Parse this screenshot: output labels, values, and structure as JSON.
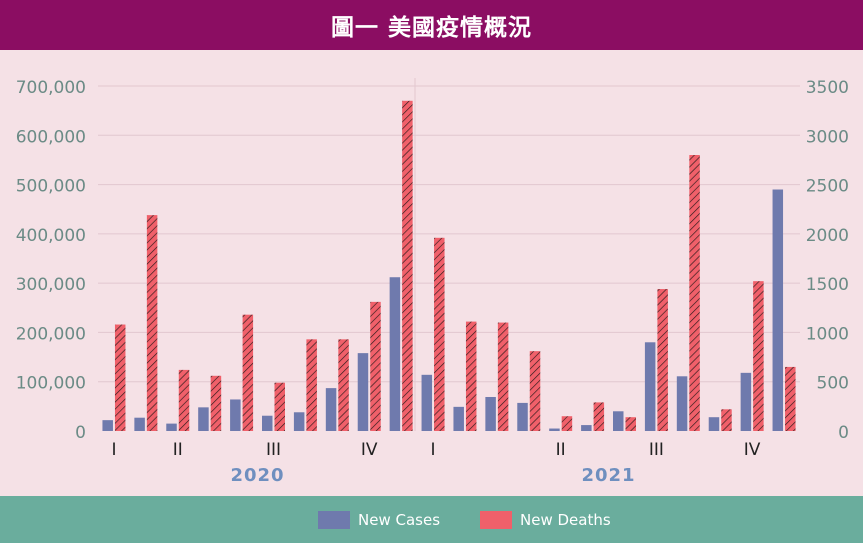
{
  "title": "圖一  美國疫情概況",
  "colors": {
    "header_bg": "#8b0d62",
    "plot_bg": "#f5e1e6",
    "legend_bg": "#6aad9d",
    "cases": "#6f7aad",
    "deaths": "#f0606a",
    "axis_text": "#6b8b86",
    "year_text": "#6f8fbf"
  },
  "legend": {
    "cases_label": "New Cases",
    "deaths_label": "New Deaths"
  },
  "chart_data": {
    "type": "bar",
    "left_axis": {
      "ticks": [
        "0",
        "100,000",
        "200,000",
        "300,000",
        "400,000",
        "500,000",
        "600,000",
        "700,000"
      ],
      "ylim": [
        0,
        700000
      ]
    },
    "right_axis": {
      "ticks": [
        "0",
        "500",
        "1000",
        "1500",
        "2000",
        "2500",
        "3000",
        "3500"
      ],
      "ylim": [
        0,
        3500
      ]
    },
    "quarter_labels": [
      {
        "label": "I",
        "index": 0
      },
      {
        "label": "II",
        "index": 2
      },
      {
        "label": "III",
        "index": 5
      },
      {
        "label": "IV",
        "index": 8
      },
      {
        "label": "I",
        "index": 10
      },
      {
        "label": "II",
        "index": 14
      },
      {
        "label": "III",
        "index": 17
      },
      {
        "label": "IV",
        "index": 20
      }
    ],
    "years": [
      {
        "label": "2020",
        "center_index": 4.5
      },
      {
        "label": "2021",
        "center_index": 15.5
      }
    ],
    "series": [
      {
        "name": "New Cases",
        "axis": "left",
        "values": [
          22000,
          27000,
          15000,
          48000,
          64000,
          31000,
          38000,
          87000,
          158000,
          312000,
          114000,
          49000,
          69000,
          57000,
          5000,
          12000,
          40000,
          180000,
          111000,
          28000,
          118000,
          490000
        ]
      },
      {
        "name": "New Deaths",
        "axis": "right",
        "values": [
          1080,
          2190,
          620,
          560,
          1180,
          490,
          930,
          930,
          1310,
          3350,
          1960,
          1110,
          1100,
          810,
          150,
          290,
          140,
          1440,
          2800,
          220,
          1520,
          650
        ]
      }
    ]
  }
}
